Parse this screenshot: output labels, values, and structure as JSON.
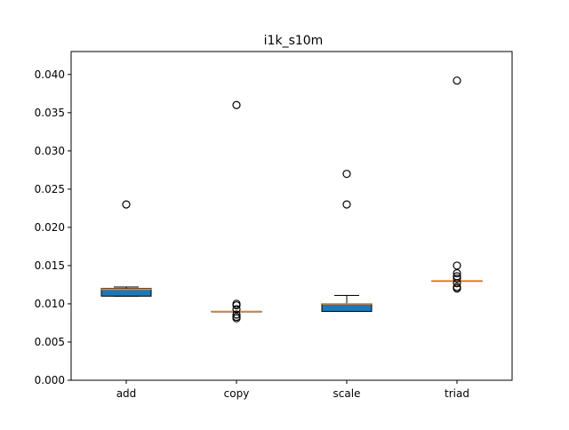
{
  "chart_data": {
    "type": "box",
    "title": "i1k_s10m",
    "xlabel": "",
    "ylabel": "",
    "ylim": [
      0,
      0.043
    ],
    "yticks": [
      "0.000",
      "0.005",
      "0.010",
      "0.015",
      "0.020",
      "0.025",
      "0.030",
      "0.035",
      "0.040"
    ],
    "grid": false,
    "legend": "none",
    "colors": {
      "box_fill": "#1f77b4",
      "median": "#ff7f0e",
      "whisker": "#000000"
    },
    "series": [
      {
        "category": "add",
        "whisker_low": 0.011,
        "q1": 0.011,
        "median": 0.0119,
        "q3": 0.012,
        "whisker_high": 0.0122,
        "fliers": [
          0.023
        ]
      },
      {
        "category": "copy",
        "whisker_low": 0.009,
        "q1": 0.009,
        "median": 0.009,
        "q3": 0.009,
        "whisker_high": 0.009,
        "fliers": [
          0.036,
          0.01,
          0.0098,
          0.0093,
          0.0086,
          0.0083,
          0.0081
        ]
      },
      {
        "category": "scale",
        "whisker_low": 0.009,
        "q1": 0.009,
        "median": 0.01,
        "q3": 0.01,
        "whisker_high": 0.0111,
        "fliers": [
          0.027,
          0.023
        ]
      },
      {
        "category": "triad",
        "whisker_low": 0.013,
        "q1": 0.013,
        "median": 0.013,
        "q3": 0.013,
        "whisker_high": 0.013,
        "fliers": [
          0.0392,
          0.015,
          0.014,
          0.0136,
          0.0133,
          0.0127,
          0.0122,
          0.012
        ]
      }
    ]
  }
}
